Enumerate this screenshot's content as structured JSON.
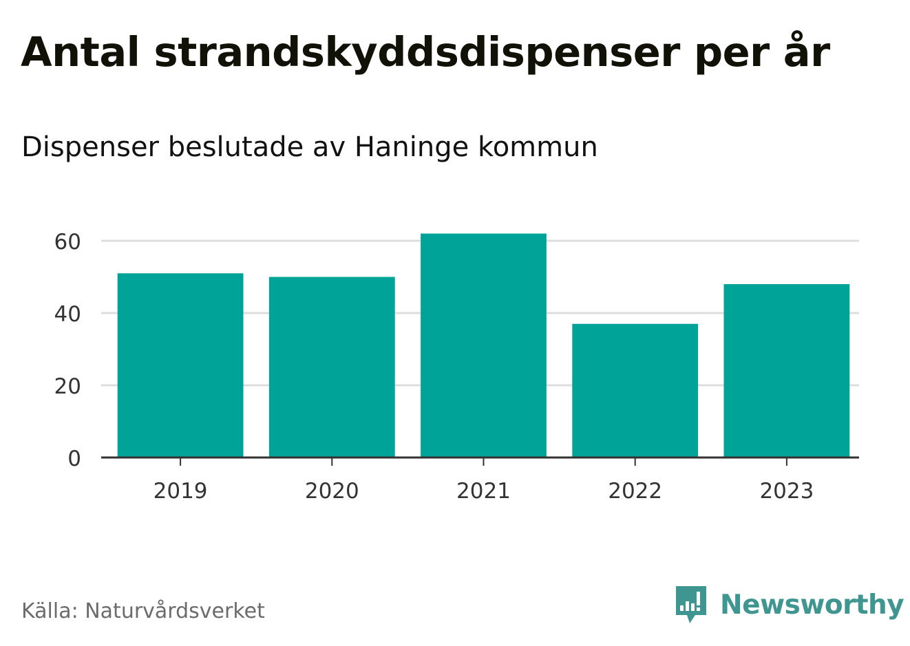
{
  "title": "Antal strandskyddsdispenser per år",
  "subtitle": "Dispenser beslutade av Haninge kommun",
  "source": "Källa: Naturvårdsverket",
  "brand": {
    "name": "Newsworthy",
    "icon": "newsworthy-logo-icon",
    "color": "#3f958f"
  },
  "colors": {
    "bar": "#00a398",
    "grid": "#dddddd",
    "axis": "#333333",
    "tick_text": "#333333"
  },
  "chart_data": {
    "type": "bar",
    "title": "Antal strandskyddsdispenser per år",
    "subtitle": "Dispenser beslutade av Haninge kommun",
    "xlabel": "",
    "ylabel": "",
    "categories": [
      "2019",
      "2020",
      "2021",
      "2022",
      "2023"
    ],
    "values": [
      51,
      50,
      62,
      37,
      48
    ],
    "ylim": [
      0,
      60
    ],
    "yticks": [
      0,
      20,
      40,
      60
    ],
    "grid": true,
    "legend": "none"
  }
}
